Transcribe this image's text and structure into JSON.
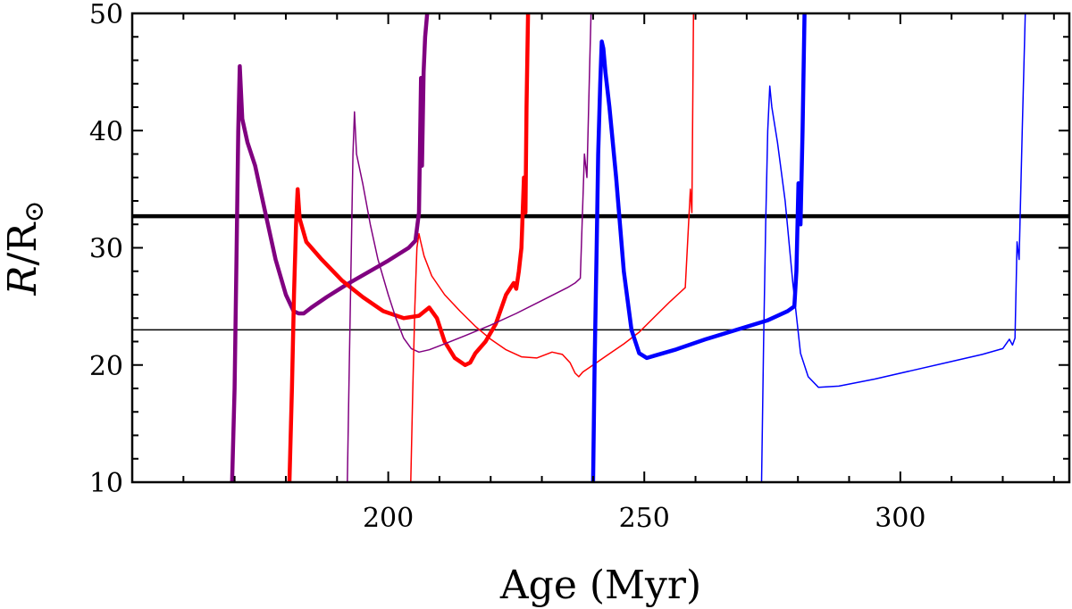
{
  "chart_data": {
    "type": "line",
    "title": "",
    "xlabel": "Age (Myr)",
    "ylabel_main": "R",
    "ylabel_sep": "/R",
    "ylabel_sub": "⊙",
    "xlim": [
      150,
      333
    ],
    "ylim": [
      10,
      50
    ],
    "xticks": [
      200,
      250,
      300
    ],
    "xtick_labels": [
      "200",
      "250",
      "300"
    ],
    "xticks_minor": [
      160,
      170,
      180,
      190,
      210,
      220,
      230,
      240,
      260,
      270,
      280,
      290,
      310,
      320,
      330
    ],
    "yticks": [
      10,
      20,
      30,
      40,
      50
    ],
    "ytick_labels": [
      "10",
      "20",
      "30",
      "40",
      "50"
    ],
    "yticks_minor": [
      12,
      14,
      16,
      18,
      22,
      24,
      26,
      28,
      32,
      34,
      36,
      38,
      42,
      44,
      46,
      48
    ],
    "grid": false,
    "hlines": [
      {
        "name": "thick-reference",
        "y": 32.7,
        "color": "#000000",
        "weight": "thick"
      },
      {
        "name": "thin-reference",
        "y": 23.0,
        "color": "#000000",
        "weight": "thin"
      }
    ],
    "series": [
      {
        "name": "purple-thick",
        "color": "#800080",
        "weight": "thick",
        "x": [
          169.5,
          170.0,
          170.4,
          170.7,
          171.0,
          171.5,
          172.5,
          174,
          176,
          178,
          180,
          181.5,
          182.5,
          183.5,
          185,
          188,
          192,
          196,
          200,
          204,
          205.3,
          206.0,
          206.4,
          206.6,
          206.9,
          207.2,
          207.6
        ],
        "y": [
          10,
          18,
          30,
          40,
          45.5,
          41,
          39,
          37,
          33,
          29,
          26,
          24.6,
          24.4,
          24.4,
          24.9,
          25.8,
          26.9,
          27.9,
          28.9,
          30,
          30.6,
          33,
          44.5,
          37,
          45,
          48,
          50
        ]
      },
      {
        "name": "red-thick",
        "color": "#ff0000",
        "weight": "thick",
        "x": [
          180.7,
          181.2,
          181.6,
          182.0,
          182.3,
          182.7,
          184,
          187,
          191,
          195,
          199,
          203,
          206,
          208,
          209.5,
          211,
          213,
          215,
          216,
          217,
          219,
          221,
          223,
          224.5,
          225,
          225.5,
          226,
          226.5,
          226.8,
          227.0,
          227.3
        ],
        "y": [
          10,
          18,
          26,
          32,
          35,
          32.5,
          30.5,
          29,
          27.2,
          25.8,
          24.6,
          24.0,
          24.2,
          24.9,
          24.0,
          22.0,
          20.6,
          20.0,
          20.2,
          21,
          22,
          23.5,
          26,
          27,
          26.5,
          28,
          30,
          36,
          33,
          42,
          50
        ]
      },
      {
        "name": "purple-thin",
        "color": "#800080",
        "weight": "thin",
        "x": [
          192.0,
          192.4,
          192.8,
          193.1,
          193.4,
          193.8,
          195,
          196.5,
          198,
          200,
          201.5,
          203,
          204.5,
          206,
          208,
          211,
          215,
          220,
          225,
          230,
          235,
          236.5,
          237.5,
          238.3,
          238.8,
          239.3,
          239.6
        ],
        "y": [
          10,
          20,
          30,
          38,
          41.6,
          38,
          35.5,
          32,
          29,
          26,
          24,
          22.3,
          21.4,
          21.1,
          21.3,
          21.8,
          22.5,
          23.4,
          24.4,
          25.5,
          26.6,
          27,
          27.4,
          38,
          36,
          45,
          50
        ]
      },
      {
        "name": "red-thin",
        "color": "#ff0000",
        "weight": "thin",
        "x": [
          204.4,
          204.8,
          205.2,
          205.6,
          206.0,
          206.3,
          207,
          208.5,
          211,
          214,
          217,
          220,
          223,
          226,
          229,
          232,
          234,
          235.5,
          236.5,
          237.2,
          238,
          240,
          243,
          246,
          249,
          252,
          255,
          256.5,
          258,
          259.0,
          259.3,
          259.6
        ],
        "y": [
          10,
          18,
          25,
          30,
          31.2,
          30.6,
          29.3,
          27.6,
          26.0,
          24.6,
          23.3,
          22.2,
          21.3,
          20.7,
          20.6,
          21.1,
          20.9,
          20.2,
          19.3,
          19.0,
          19.4,
          20.0,
          20.9,
          21.8,
          22.8,
          24.1,
          25.4,
          26.0,
          26.6,
          35,
          33,
          50
        ]
      },
      {
        "name": "blue-thick",
        "color": "#0000ff",
        "weight": "thick",
        "x": [
          240.0,
          240.3,
          240.7,
          241.0,
          241.4,
          241.7,
          242.0,
          242.4,
          243.2,
          244.5,
          246,
          247.5,
          249,
          250.5,
          252,
          256,
          262,
          268,
          274,
          278,
          279.3,
          279.7,
          280.1,
          280.5,
          280.9,
          281.3
        ],
        "y": [
          10,
          20,
          30,
          38,
          44,
          47.6,
          47.0,
          45,
          42,
          36,
          28,
          23,
          21,
          20.6,
          20.8,
          21.3,
          22.2,
          23.0,
          23.8,
          24.6,
          25,
          28,
          35.5,
          32,
          40,
          50
        ]
      },
      {
        "name": "blue-thin",
        "color": "#0000ff",
        "weight": "thin",
        "x": [
          272.9,
          273.3,
          273.7,
          274.1,
          274.5,
          274.9,
          276,
          277.5,
          279,
          280.5,
          282,
          284,
          288,
          295,
          302,
          309,
          316,
          320,
          321.3,
          321.9,
          322.4,
          322.8,
          323.2,
          323.8,
          324.4
        ],
        "y": [
          10,
          22,
          32,
          40,
          43.8,
          42,
          39,
          34,
          27,
          21,
          19,
          18.1,
          18.2,
          18.8,
          19.5,
          20.2,
          20.9,
          21.4,
          22.2,
          21.7,
          22.3,
          30.5,
          29,
          40,
          50
        ]
      }
    ]
  }
}
